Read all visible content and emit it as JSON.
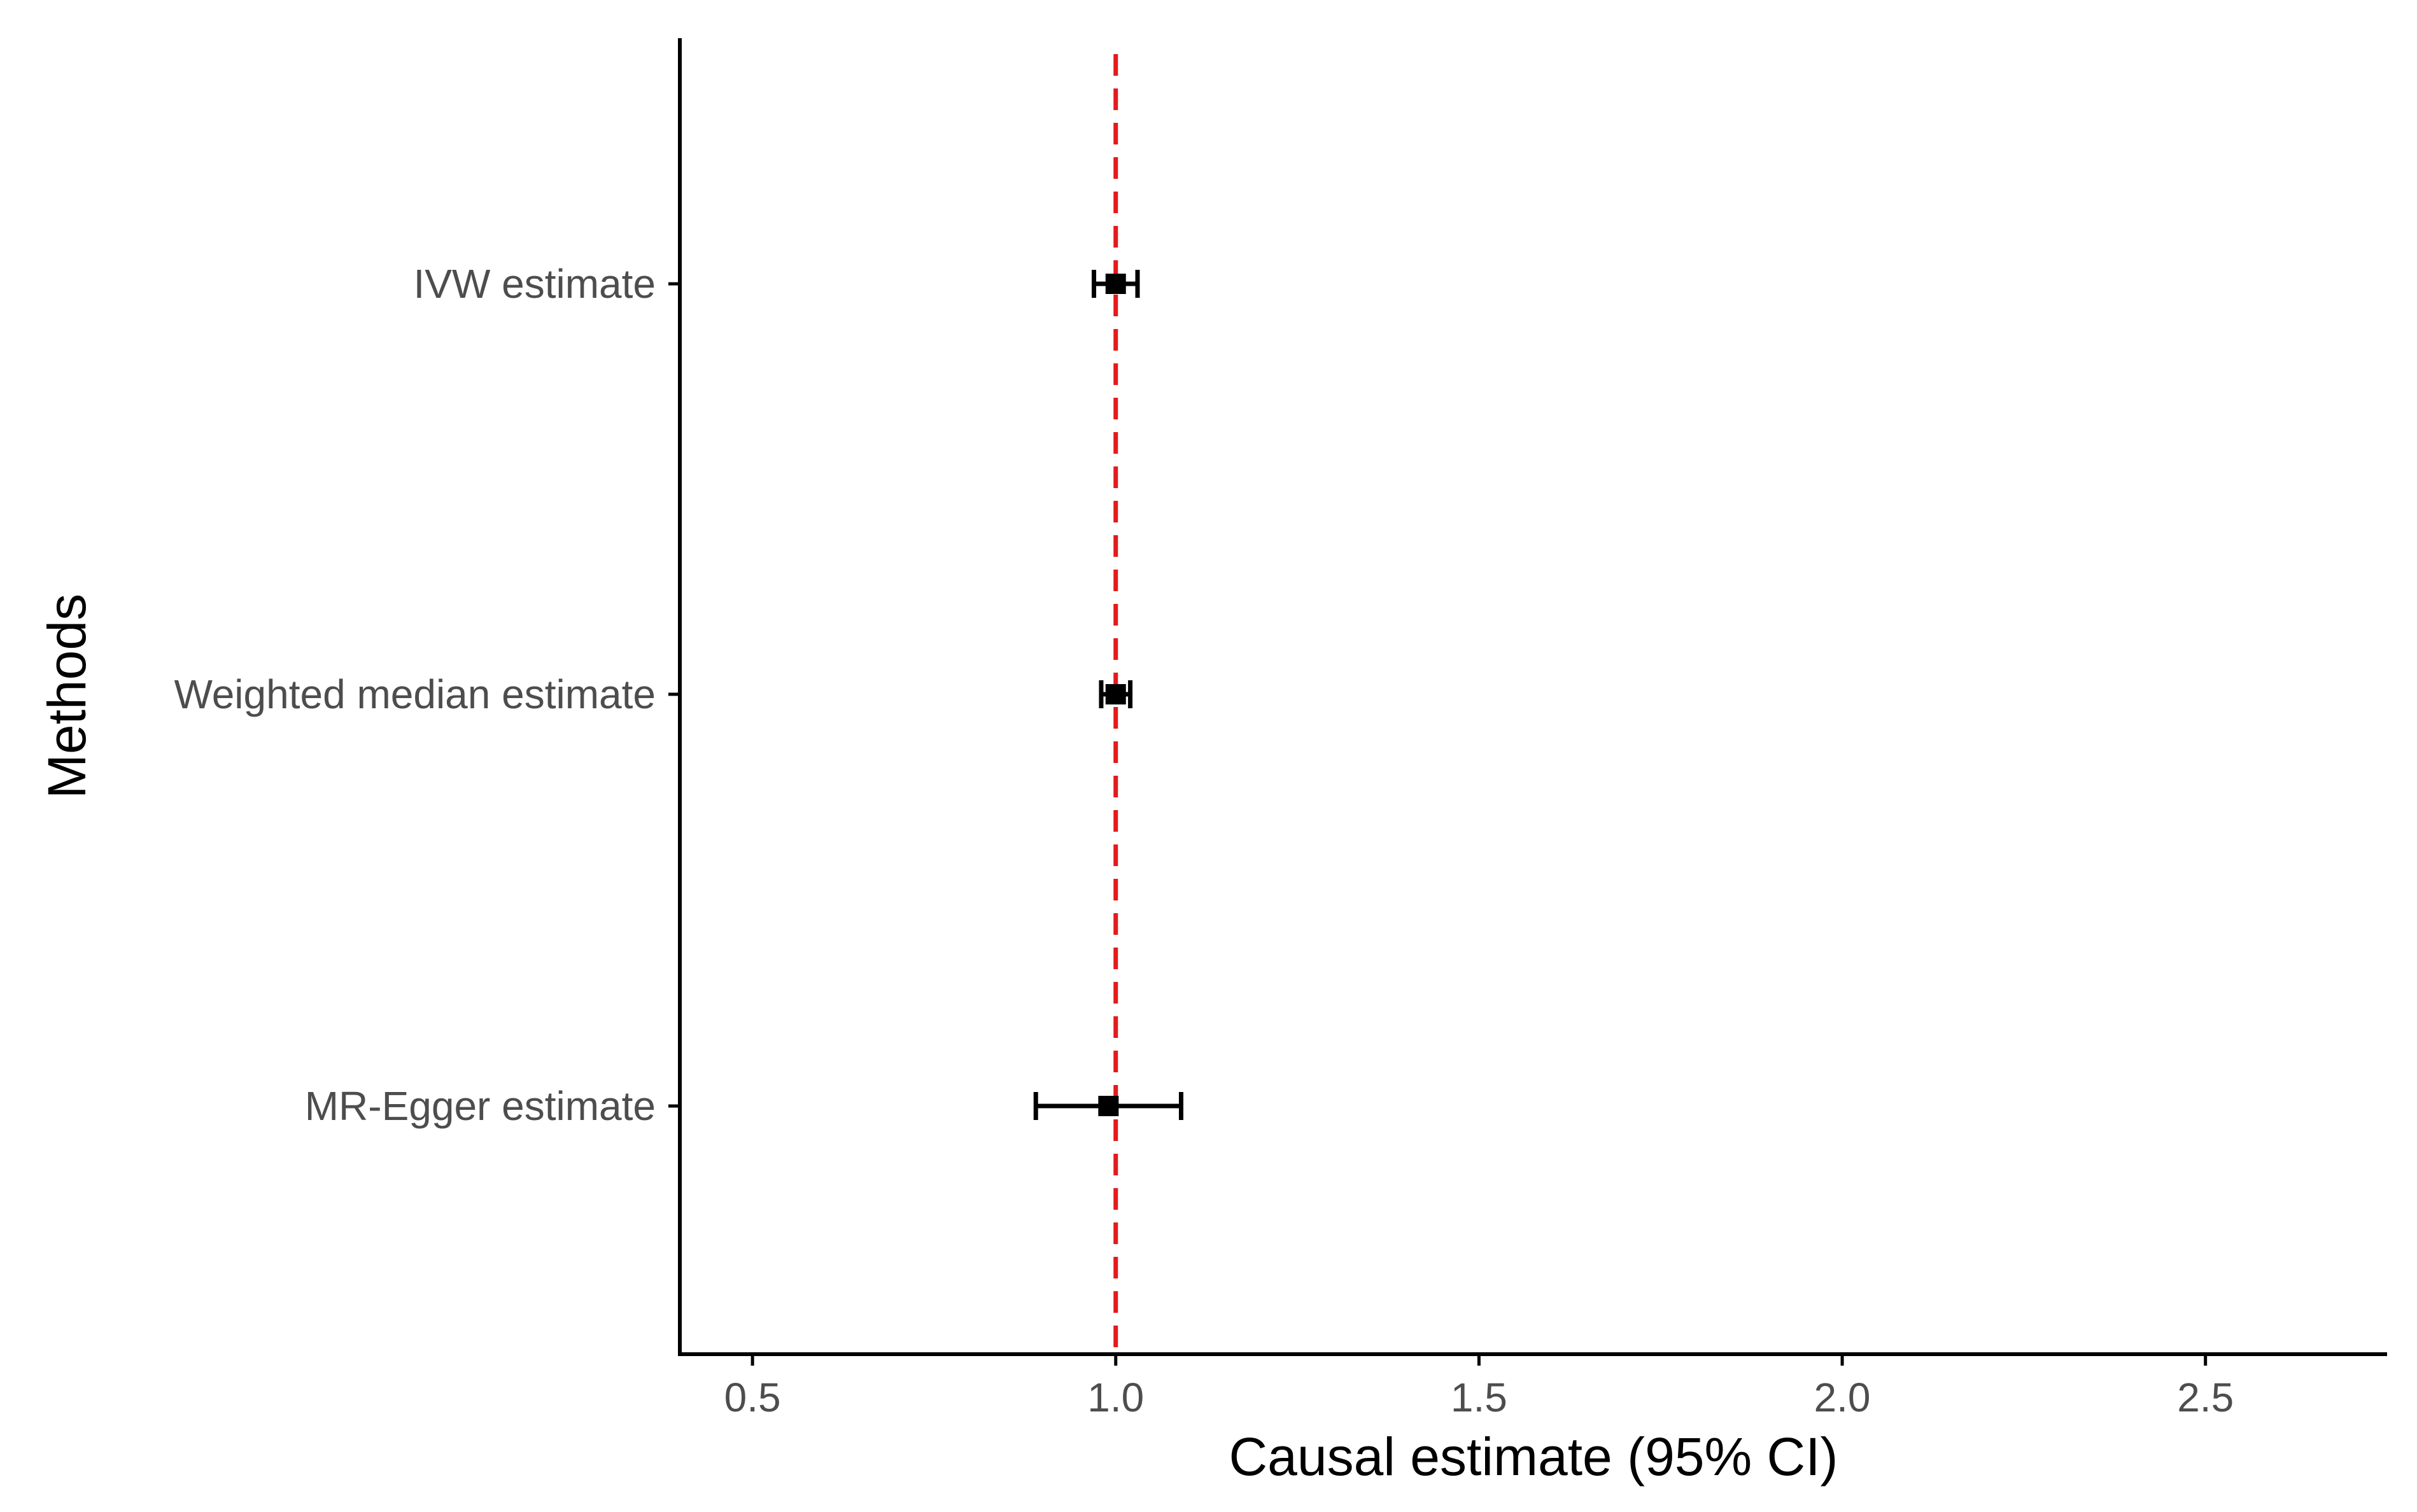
{
  "chart_data": {
    "type": "scatter",
    "title": "",
    "xlabel": "Causal estimate (95% CI)",
    "ylabel": "Methods",
    "xlim": [
      0.4,
      2.75
    ],
    "x_ticks": [
      0.5,
      1.0,
      1.5,
      2.0,
      2.5
    ],
    "x_tick_labels": [
      "0.5",
      "1.0",
      "1.5",
      "2.0",
      "2.5"
    ],
    "reference_line": {
      "x": 1.0,
      "style": "dashed",
      "color": "#e41a1c"
    },
    "grid": false,
    "legend": "none",
    "categories": [
      "IVW estimate",
      "Weighted median estimate",
      "MR-Egger estimate"
    ],
    "points": [
      {
        "method": "IVW estimate",
        "estimate": 1.0,
        "lower": 0.97,
        "upper": 1.03
      },
      {
        "method": "Weighted median estimate",
        "estimate": 1.0,
        "lower": 0.98,
        "upper": 1.02
      },
      {
        "method": "MR-Egger estimate",
        "estimate": 0.99,
        "lower": 0.89,
        "upper": 1.09
      }
    ],
    "colors": {
      "points": "#000000",
      "axis": "#000000",
      "reference": "#e41a1c"
    }
  }
}
